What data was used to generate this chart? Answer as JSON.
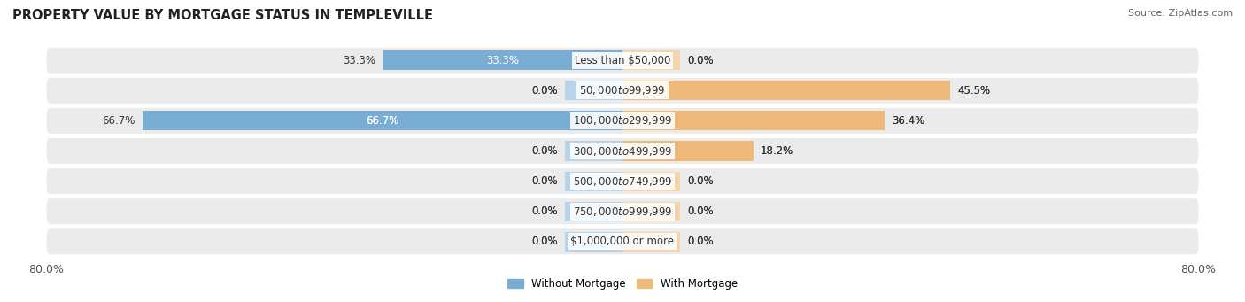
{
  "title": "PROPERTY VALUE BY MORTGAGE STATUS IN TEMPLEVILLE",
  "source": "Source: ZipAtlas.com",
  "categories": [
    "Less than $50,000",
    "$50,000 to $99,999",
    "$100,000 to $299,999",
    "$300,000 to $499,999",
    "$500,000 to $749,999",
    "$750,000 to $999,999",
    "$1,000,000 or more"
  ],
  "without_mortgage": [
    33.3,
    0.0,
    66.7,
    0.0,
    0.0,
    0.0,
    0.0
  ],
  "with_mortgage": [
    0.0,
    45.5,
    36.4,
    18.2,
    0.0,
    0.0,
    0.0
  ],
  "color_without": "#7aadd4",
  "color_with": "#f0b97c",
  "color_without_light": "#b8d4ea",
  "color_with_light": "#f5d5ae",
  "axis_min": -80.0,
  "axis_max": 80.0,
  "bg_bar": "#ebebeb",
  "title_fontsize": 10.5,
  "label_fontsize": 8.5,
  "tick_fontsize": 9,
  "stub_size": 8.0
}
